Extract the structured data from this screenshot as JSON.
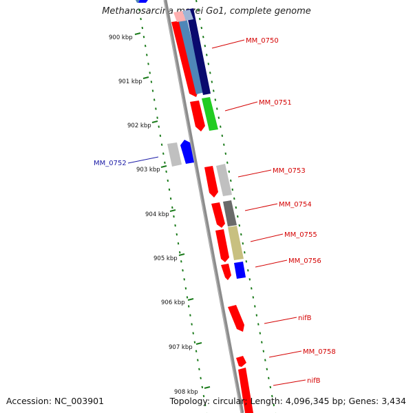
{
  "title": "Methanosarcina mazei Go1, complete genome",
  "footer": {
    "accession": "Accession: NC_003901",
    "summary": "Topology: circular; Length: 4,096,345 bp; Genes: 3,434"
  },
  "colors": {
    "label_red": "#d40000",
    "label_blue": "#1a1aa6",
    "tick_green": "#1a7a1a",
    "backbone": "#8c8c8c",
    "red": "#ff0000",
    "steel_blue": "#4f86b8",
    "navy": "#0a0a6e",
    "green": "#22cc22",
    "light_gray": "#c0c0c0",
    "dark_gray": "#6a6a6a",
    "khaki": "#c8c080",
    "blue": "#0000ff"
  },
  "kbp_labels": [
    "900 kbp",
    "901 kbp",
    "902 kbp",
    "903 kbp",
    "904 kbp",
    "905 kbp",
    "906 kbp",
    "907 kbp",
    "908 kbp"
  ],
  "gene_labels": [
    "MM_0750",
    "MM_0751",
    "MM_0752",
    "MM_0753",
    "MM_0754",
    "MM_0755",
    "MM_0756",
    "nifB",
    "MM_0758",
    "nifB"
  ]
}
